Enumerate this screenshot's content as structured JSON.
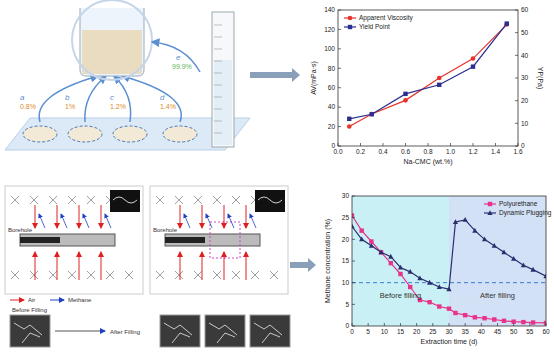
{
  "chart_data": [
    {
      "type": "line",
      "x_label": "Na-CMC (wt.%)",
      "y_label": "AV(mPa·s)",
      "y2_label": "YP(Pa)",
      "x": [
        0.1,
        0.3,
        0.6,
        0.9,
        1.2,
        1.5
      ],
      "series": [
        {
          "name": "Apparent Viscosity",
          "color": "#e8332a",
          "marker": "circle",
          "values": [
            20,
            33,
            47,
            70,
            90,
            125
          ]
        },
        {
          "name": "Yield Point",
          "color": "#2b2f8f",
          "marker": "square",
          "axis": "y2",
          "values": [
            12,
            14,
            23,
            27,
            35,
            54
          ]
        }
      ],
      "xlim": [
        0,
        1.6
      ],
      "xticks": [
        {
          "value": 0,
          "label": "0.0"
        },
        {
          "value": 0.2,
          "label": "0.2"
        },
        {
          "value": 0.4,
          "label": "0.4"
        },
        {
          "value": 0.6,
          "label": "0.6"
        },
        {
          "value": 0.8,
          "label": "0.8"
        },
        {
          "value": 1,
          "label": "1.0"
        },
        {
          "value": 1.2,
          "label": "1.2"
        },
        {
          "value": 1.4,
          "label": "1.4"
        },
        {
          "value": 1.6,
          "label": "1.6"
        }
      ],
      "ylim": [
        0,
        140
      ],
      "yticks": [
        0,
        20,
        40,
        60,
        80,
        100,
        120,
        140
      ],
      "y2lim": [
        0,
        60
      ],
      "y2ticks": [
        0,
        10,
        20,
        30,
        40,
        50,
        60
      ],
      "legend": "upper left"
    },
    {
      "type": "line",
      "x_label": "Extraction time (d)",
      "y_label": "Methane concentration (%)",
      "x": [
        0,
        3,
        6,
        9,
        12,
        15,
        18,
        21,
        24,
        27,
        30,
        32,
        35,
        38,
        41,
        44,
        47,
        50,
        53,
        56,
        60
      ],
      "series": [
        {
          "name": "Polyurethane",
          "color": "#e8338a",
          "marker": "square",
          "values": [
            25.5,
            22,
            19.5,
            17,
            14.5,
            12,
            9,
            6,
            5.5,
            4.5,
            4,
            3,
            2.5,
            2,
            1.8,
            1.5,
            1.2,
            1,
            0.9,
            0.8,
            0.7
          ]
        },
        {
          "name": "Dynamic Plugging",
          "color": "#2b2f6f",
          "marker": "triangle",
          "values": [
            23,
            20,
            18.5,
            17,
            16,
            13.5,
            12.5,
            11,
            10,
            9,
            8.5,
            24,
            24.5,
            22,
            20,
            18.5,
            17,
            15.5,
            14,
            13,
            11.5
          ]
        }
      ],
      "xlim": [
        0,
        60
      ],
      "xticks": [
        0,
        5,
        10,
        15,
        20,
        25,
        30,
        35,
        40,
        45,
        50,
        55,
        60
      ],
      "ylim": [
        0,
        30
      ],
      "yticks": [
        0,
        5,
        10,
        15,
        20,
        25,
        30
      ],
      "legend": "upper right",
      "threshold": 10,
      "regions": [
        {
          "label": "Before filling",
          "range": [
            0,
            30
          ],
          "color": "#c9f1f5"
        },
        {
          "label": "After filling",
          "range": [
            30,
            60
          ],
          "color": "#d3e1f6"
        }
      ]
    }
  ],
  "diagram": {
    "mixtures": [
      {
        "letter": "a",
        "text": "0.8%"
      },
      {
        "letter": "b",
        "text": "1%"
      },
      {
        "letter": "c",
        "text": "1.2%"
      },
      {
        "letter": "d",
        "text": "1.4%"
      }
    ],
    "product": {
      "letter": "e",
      "text": "99.9%"
    },
    "labels": {
      "borehole": "Borehole",
      "air": "Air",
      "methane": "Methane"
    },
    "micro": {
      "before": "Before Filling",
      "after": "After Filling"
    }
  }
}
